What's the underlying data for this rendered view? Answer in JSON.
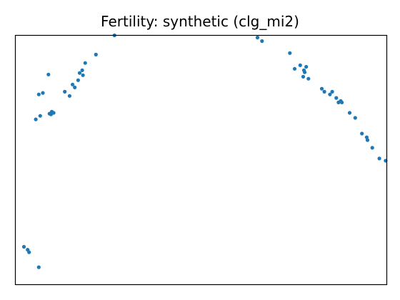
{
  "chart_data": {
    "type": "scatter",
    "title": "Fertility: synthetic (clg_mi2)",
    "xlabel": "",
    "ylabel": "",
    "grid": false,
    "x_ticks": "none",
    "y_ticks": "none",
    "xlim": [
      0,
      100
    ],
    "ylim": [
      0,
      100
    ],
    "marker_color": "#1f77b4",
    "series": [
      {
        "points": [
          [
            2.3,
            15.2
          ],
          [
            3.3,
            14.0
          ],
          [
            3.7,
            13.0
          ],
          [
            6.3,
            7.0
          ],
          [
            5.5,
            66.3
          ],
          [
            6.7,
            67.7
          ],
          [
            6.3,
            76.3
          ],
          [
            7.4,
            76.9
          ],
          [
            8.9,
            84.3
          ],
          [
            9.2,
            68.6
          ],
          [
            9.6,
            68.3
          ],
          [
            9.8,
            69.4
          ],
          [
            10.3,
            68.9
          ],
          [
            13.3,
            77.4
          ],
          [
            14.6,
            75.7
          ],
          [
            15.4,
            80.3
          ],
          [
            16.0,
            79.1
          ],
          [
            16.9,
            82.0
          ],
          [
            17.3,
            84.9
          ],
          [
            18.0,
            86.0
          ],
          [
            18.8,
            88.9
          ],
          [
            18.2,
            84.0
          ],
          [
            21.7,
            92.3
          ],
          [
            26.7,
            100.0
          ],
          [
            65.2,
            99.1
          ],
          [
            66.4,
            97.7
          ],
          [
            73.9,
            92.9
          ],
          [
            75.2,
            86.6
          ],
          [
            76.7,
            88.0
          ],
          [
            77.7,
            86.0
          ],
          [
            77.9,
            85.2
          ],
          [
            78.3,
            87.4
          ],
          [
            77.5,
            83.4
          ],
          [
            78.9,
            82.6
          ],
          [
            82.5,
            78.6
          ],
          [
            83.2,
            77.4
          ],
          [
            84.7,
            76.3
          ],
          [
            85.3,
            77.4
          ],
          [
            86.4,
            74.9
          ],
          [
            87.6,
            73.7
          ],
          [
            87.0,
            73.1
          ],
          [
            87.9,
            73.1
          ],
          [
            90.0,
            68.9
          ],
          [
            91.5,
            66.9
          ],
          [
            93.3,
            60.6
          ],
          [
            94.6,
            59.1
          ],
          [
            94.8,
            58.0
          ],
          [
            96.1,
            54.9
          ],
          [
            98.0,
            50.6
          ],
          [
            99.7,
            49.7
          ]
        ]
      }
    ]
  }
}
